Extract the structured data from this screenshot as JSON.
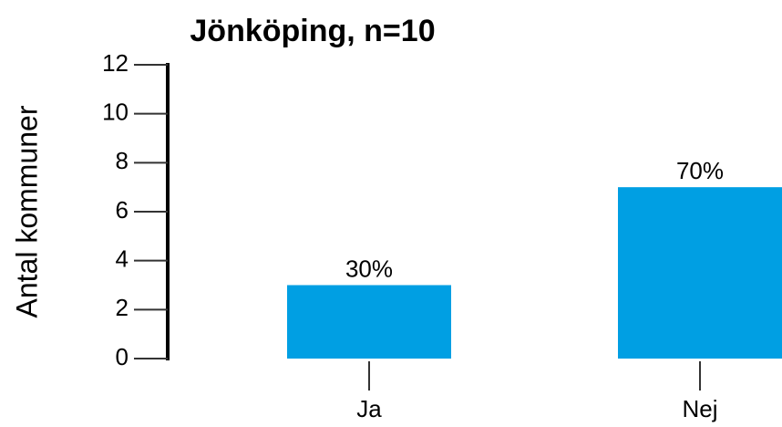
{
  "chart_data": {
    "type": "bar",
    "title": "Jönköping, n=10",
    "y_label": "Antal kommuner",
    "categories": [
      "Ja",
      "Nej"
    ],
    "values": [
      3,
      7
    ],
    "value_labels": [
      "30%",
      "70%"
    ],
    "color": "#009fe3",
    "ylim": [
      0,
      12
    ],
    "yticks": [
      0,
      2,
      4,
      6,
      8,
      10,
      12
    ]
  }
}
